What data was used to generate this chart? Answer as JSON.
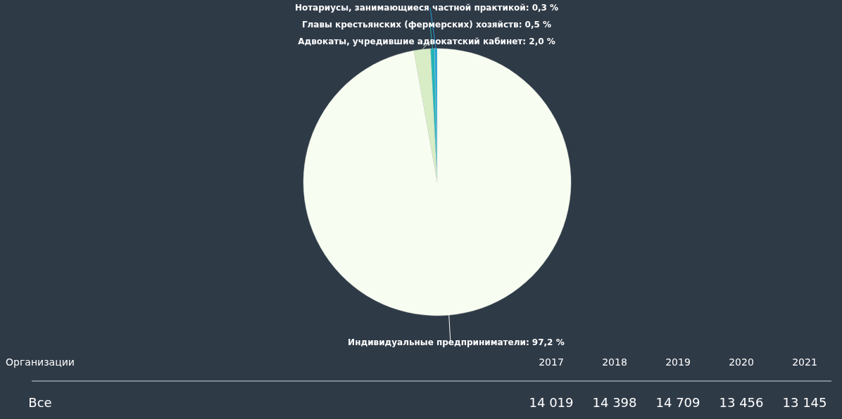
{
  "chart_data": {
    "type": "pie",
    "categories": [
      "Индивидуальные предприниматели",
      "Адвокаты, учредившие адвокатский кабинет",
      "Главы крестьянских (фермерских) хозяйств",
      "Нотариусы, занимающиеся частной практикой"
    ],
    "values": [
      97.2,
      2.0,
      0.5,
      0.3
    ],
    "value_labels": [
      "97,2 %",
      "2,0 %",
      "0,5 %",
      "0,3 %"
    ],
    "colors": [
      "#f8fdf2",
      "#d8ecc6",
      "#22b3b8",
      "#1e9fd8"
    ],
    "annotations": [
      "Организации",
      "2017",
      "2018",
      "2019",
      "2020",
      "2021",
      "Все",
      "14 019",
      "14 398",
      "14 709",
      "13 456",
      "13 145"
    ]
  }
}
